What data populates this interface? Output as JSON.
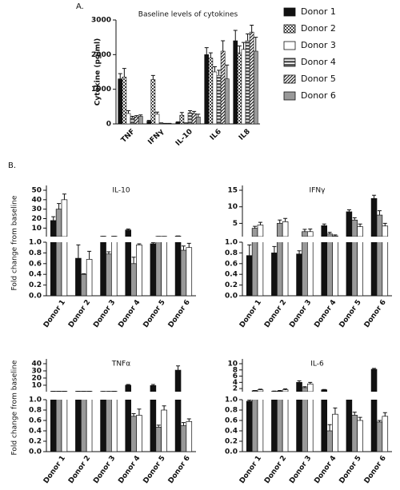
{
  "chart_data": [
    {
      "type": "bar",
      "panel": "A.",
      "title": "Baseline levels of cytokines",
      "ylabel": "Cytokine (pg/ml)",
      "categories": [
        "TNF",
        "IFNγ",
        "IL-10",
        "IL6",
        "IL8"
      ],
      "ylim": [
        0,
        3000
      ],
      "yticks": [
        0,
        1000,
        2000,
        3000
      ],
      "series": [
        {
          "name": "Donor 1",
          "color": "#111111",
          "pattern": "solid",
          "values": [
            1300,
            80,
            40,
            2000,
            2400
          ],
          "errors": [
            150,
            20,
            20,
            200,
            300
          ]
        },
        {
          "name": "Donor 2",
          "color": "#444444",
          "pattern": "checker",
          "values": [
            1350,
            1280,
            250,
            1900,
            2050
          ],
          "errors": [
            250,
            120,
            80,
            150,
            200
          ]
        },
        {
          "name": "Donor 3",
          "color": "#ffffff",
          "pattern": "solid",
          "values": [
            300,
            280,
            20,
            1500,
            2150
          ],
          "errors": [
            80,
            60,
            10,
            150,
            200
          ]
        },
        {
          "name": "Donor 4",
          "color": "#555555",
          "pattern": "hstripe",
          "values": [
            180,
            20,
            320,
            1400,
            2400
          ],
          "errors": [
            40,
            10,
            60,
            150,
            200
          ]
        },
        {
          "name": "Donor 5",
          "color": "#222222",
          "pattern": "diag",
          "values": [
            200,
            10,
            300,
            2100,
            2650
          ],
          "errors": [
            40,
            5,
            60,
            300,
            200
          ]
        },
        {
          "name": "Donor 6",
          "color": "#999999",
          "pattern": "solid",
          "values": [
            220,
            10,
            200,
            1300,
            2100
          ],
          "errors": [
            40,
            5,
            80,
            400,
            400
          ]
        }
      ]
    },
    {
      "type": "broken_bar",
      "panel": "B.",
      "title": "IL-10",
      "ylabel": "Fold change from baseline",
      "categories": [
        "Donor 1",
        "Donor 2",
        "Donor 3",
        "Donor 4",
        "Donor 5",
        "Donor 6"
      ],
      "ylim_lower": [
        0,
        1.0
      ],
      "yticks_lower": [
        {
          "value": 0,
          "label": "0.0"
        },
        {
          "value": 0.2,
          "label": "0.2"
        },
        {
          "value": 0.4,
          "label": "0.4"
        },
        {
          "value": 0.6,
          "label": "0.6"
        },
        {
          "value": 0.8,
          "label": "0.8"
        },
        {
          "value": 1.0,
          "label": "1.0"
        }
      ],
      "ylim_upper": [
        1,
        50
      ],
      "yticks_upper": [
        10,
        20,
        30,
        40,
        50
      ],
      "series": [
        {
          "color": "#111111",
          "values": [
            18,
            0.7,
            1.3,
            8,
            0.97,
            1.5
          ],
          "errors": [
            4,
            0.25,
            0.05,
            1,
            0.02,
            0.1
          ]
        },
        {
          "color": "#999999",
          "values": [
            30,
            0.4,
            0.78,
            0.6,
            1.2,
            0.85
          ],
          "errors": [
            6,
            0.01,
            0.04,
            0.12,
            0.05,
            0.08
          ]
        },
        {
          "color": "#ffffff",
          "values": [
            40,
            0.68,
            1.3,
            0.95,
            1.2,
            0.9
          ],
          "errors": [
            6,
            0.15,
            0.05,
            0.02,
            0.05,
            0.08
          ]
        }
      ]
    },
    {
      "type": "broken_bar",
      "title": "IFNγ",
      "categories": [
        "Donor 1",
        "Donor 2",
        "Donor 3",
        "Donor 4",
        "Donor 5",
        "Donor 6"
      ],
      "ylim_lower": [
        0,
        1.0
      ],
      "yticks_lower": [
        {
          "value": 0,
          "label": "0.0"
        },
        {
          "value": 0.2,
          "label": "0.2"
        },
        {
          "value": 0.4,
          "label": "0.4"
        },
        {
          "value": 0.6,
          "label": "0.6"
        },
        {
          "value": 0.8,
          "label": "0.8"
        },
        {
          "value": 1.0,
          "label": "1.0"
        }
      ],
      "ylim_upper": [
        1,
        15
      ],
      "yticks_upper": [
        5,
        10,
        15
      ],
      "series": [
        {
          "color": "#111111",
          "values": [
            0.75,
            0.8,
            0.78,
            4.3,
            8.5,
            12.5
          ],
          "errors": [
            0.2,
            0.12,
            0.06,
            0.5,
            0.6,
            1
          ]
        },
        {
          "color": "#999999",
          "values": [
            3.5,
            5,
            2.5,
            1.8,
            6,
            7.5
          ],
          "errors": [
            0.6,
            1,
            0.7,
            0.5,
            0.7,
            1.3
          ]
        },
        {
          "color": "#ffffff",
          "values": [
            4.5,
            5.5,
            2.5,
            1.2,
            4,
            4.2
          ],
          "errors": [
            0.8,
            1,
            0.8,
            0.3,
            0.8,
            0.8
          ]
        }
      ]
    },
    {
      "type": "broken_bar",
      "title": "TNFα",
      "ylabel": "Fold change from baseline",
      "categories": [
        "Donor 1",
        "Donor 2",
        "Donor 3",
        "Donor 4",
        "Donor 5",
        "Donor 6"
      ],
      "ylim_lower": [
        0,
        1.0
      ],
      "yticks_lower": [
        {
          "value": 0,
          "label": "0.0"
        },
        {
          "value": 0.2,
          "label": "0.2"
        },
        {
          "value": 0.4,
          "label": "0.4"
        },
        {
          "value": 0.6,
          "label": "0.6"
        },
        {
          "value": 0.8,
          "label": "0.8"
        },
        {
          "value": 1.0,
          "label": "1.0"
        }
      ],
      "ylim_upper": [
        1,
        40
      ],
      "yticks_upper": [
        10,
        20,
        30,
        40
      ],
      "series": [
        {
          "color": "#111111",
          "values": [
            1.5,
            1.5,
            1.3,
            10,
            9.5,
            31
          ],
          "errors": [
            0.1,
            0.1,
            0.1,
            1,
            1.5,
            6
          ]
        },
        {
          "color": "#999999",
          "values": [
            1.5,
            1.5,
            1.3,
            0.68,
            0.47,
            0.5
          ],
          "errors": [
            0.1,
            0.1,
            0.1,
            0.05,
            0.04,
            0.06
          ]
        },
        {
          "color": "#ffffff",
          "values": [
            1.5,
            1.5,
            1.5,
            0.7,
            0.8,
            0.58
          ],
          "errors": [
            0.1,
            0.1,
            0.1,
            0.12,
            0.08,
            0.05
          ]
        }
      ]
    },
    {
      "type": "broken_bar",
      "title": "IL-6",
      "categories": [
        "Donor 1",
        "Donor 2",
        "Donor 3",
        "Donor 4",
        "Donor 5",
        "Donor 6"
      ],
      "ylim_lower": [
        0,
        1.0
      ],
      "yticks_lower": [
        {
          "value": 0,
          "label": "0.0"
        },
        {
          "value": 0.2,
          "label": "0.2"
        },
        {
          "value": 0.4,
          "label": "0.4"
        },
        {
          "value": 0.6,
          "label": "0.6"
        },
        {
          "value": 0.8,
          "label": "0.8"
        },
        {
          "value": 1.0,
          "label": "1.0"
        }
      ],
      "ylim_upper": [
        1,
        10
      ],
      "yticks_upper": [
        2,
        4,
        6,
        8,
        10
      ],
      "series": [
        {
          "color": "#111111",
          "values": [
            0.97,
            1.1,
            4,
            1.6,
            1.0,
            8.2
          ],
          "errors": [
            0.02,
            0.1,
            0.5,
            0.1,
            0.02,
            0.3
          ]
        },
        {
          "color": "#999999",
          "values": [
            1.3,
            1.2,
            2.3,
            0.4,
            0.7,
            0.57
          ],
          "errors": [
            0.1,
            0.2,
            0.3,
            0.12,
            0.06,
            0.03
          ]
        },
        {
          "color": "#ffffff",
          "values": [
            1.6,
            1.6,
            3.5,
            0.72,
            0.6,
            0.68
          ],
          "errors": [
            0.2,
            0.3,
            0.5,
            0.12,
            0.06,
            0.07
          ]
        }
      ]
    }
  ]
}
